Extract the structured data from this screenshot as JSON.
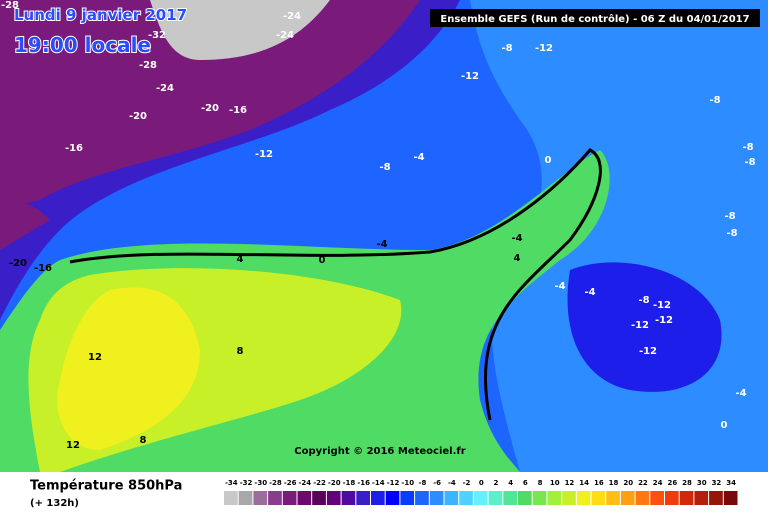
{
  "header": {
    "date": "Lundi 9 janvier 2017",
    "time": "19:00 locale",
    "model": "Ensemble GEFS  (Run de contrôle)  - 06 Z du 04/01/2017"
  },
  "contour_labels": [
    "-28",
    "-24",
    "-32",
    "-24",
    "-28",
    "-24",
    "-20",
    "-16",
    "-20",
    "-16",
    "-12",
    "-8",
    "-4",
    "0",
    "-8",
    "-12",
    "-12",
    "-8",
    "-8",
    "-8",
    "-8",
    "-8",
    "-4",
    "4",
    "0",
    "-4",
    "4",
    "-4",
    "-4",
    "-8",
    "-12",
    "-12",
    "-12",
    "-12",
    "-20",
    "-16",
    "12",
    "8",
    "12",
    "8",
    "-4",
    "0"
  ],
  "copyright": "Copyright © 2016 Meteociel.fr",
  "legend": {
    "title": "Température 850hPa",
    "lead": "(+ 132h)",
    "ticks": [
      -34,
      -32,
      -30,
      -28,
      -26,
      -24,
      -22,
      -20,
      -18,
      -16,
      -14,
      -12,
      -10,
      -8,
      -6,
      -4,
      -2,
      0,
      2,
      4,
      6,
      8,
      10,
      12,
      14,
      16,
      18,
      20,
      22,
      24,
      26,
      28,
      30,
      32,
      34
    ],
    "colors": [
      "#c8c8c8",
      "#a8a8a8",
      "#9a6e9a",
      "#8c3c8c",
      "#7a1a7a",
      "#6e0a6e",
      "#5a005a",
      "#64007a",
      "#500aa0",
      "#3a1ec8",
      "#1e1eea",
      "#0000ff",
      "#0a3cff",
      "#1e64ff",
      "#2d8cff",
      "#3cb4ff",
      "#50d2ff",
      "#64f0ff",
      "#5af0c8",
      "#50e696",
      "#50dc64",
      "#78e650",
      "#a0f03c",
      "#c8f028",
      "#f0f01e",
      "#ffdc14",
      "#ffbe14",
      "#ffa014",
      "#ff7814",
      "#ff5014",
      "#f03c0a",
      "#d2280a",
      "#b41e0a",
      "#96140a",
      "#780a0a"
    ]
  }
}
